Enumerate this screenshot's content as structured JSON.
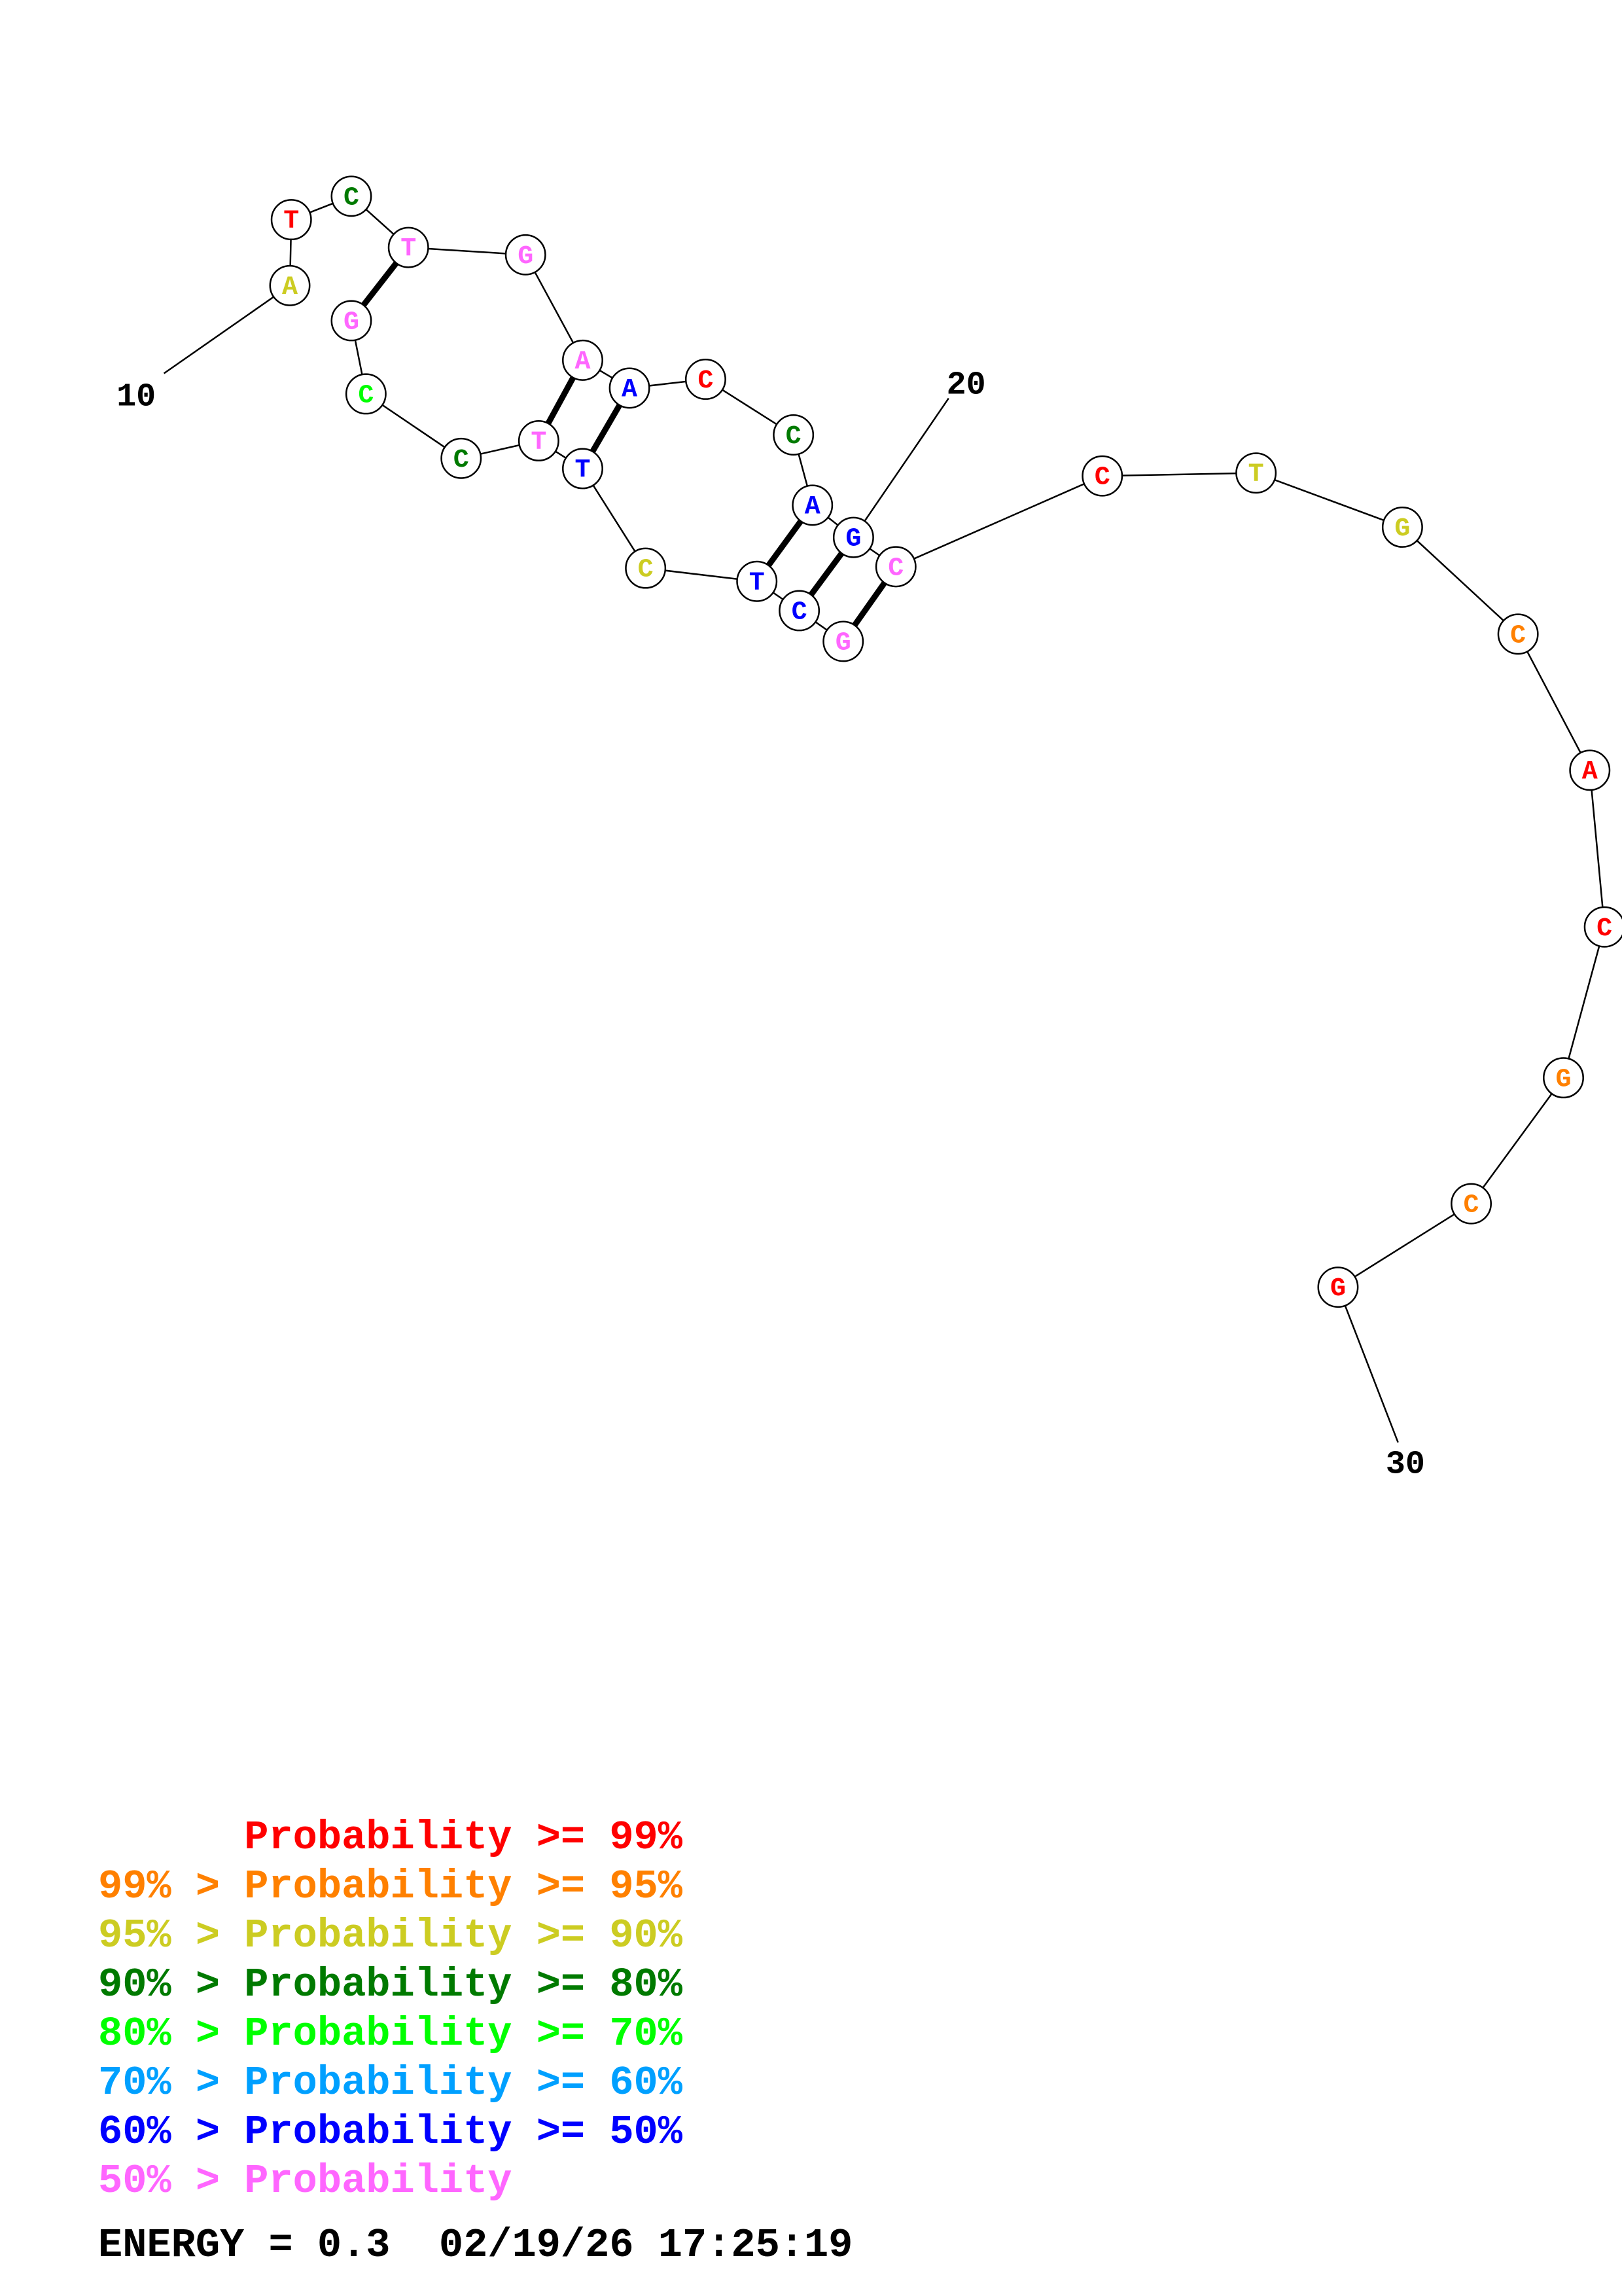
{
  "colors": {
    "p99": "#ff0000",
    "p95": "#ff8000",
    "p90": "#cccc22",
    "p80": "#007a00",
    "p70": "#00ff00",
    "p60": "#00a0ff",
    "p50": "#0000ff",
    "plt50": "#ff66ff"
  },
  "nucleotides": [
    {
      "base": "A",
      "color": "p90"
    },
    {
      "base": "T",
      "color": "p99"
    },
    {
      "base": "C",
      "color": "p80"
    },
    {
      "base": "T",
      "color": "plt50"
    },
    {
      "base": "G",
      "color": "plt50"
    },
    {
      "base": "A",
      "color": "plt50"
    },
    {
      "base": "A",
      "color": "p50"
    },
    {
      "base": "C",
      "color": "p99"
    },
    {
      "base": "C",
      "color": "p80"
    },
    {
      "base": "A",
      "color": "p50"
    },
    {
      "base": "G",
      "color": "p50"
    },
    {
      "base": "C",
      "color": "plt50"
    },
    {
      "base": "G",
      "color": "plt50"
    },
    {
      "base": "C",
      "color": "p50"
    },
    {
      "base": "T",
      "color": "p50"
    },
    {
      "base": "C",
      "color": "p90"
    },
    {
      "base": "T",
      "color": "p50"
    },
    {
      "base": "T",
      "color": "plt50"
    },
    {
      "base": "C",
      "color": "p80"
    },
    {
      "base": "C",
      "color": "p70"
    },
    {
      "base": "G",
      "color": "plt50"
    },
    {
      "base": "C",
      "color": "p99"
    },
    {
      "base": "T",
      "color": "p90"
    },
    {
      "base": "G",
      "color": "p90"
    },
    {
      "base": "C",
      "color": "p95"
    },
    {
      "base": "A",
      "color": "p99"
    },
    {
      "base": "C",
      "color": "p99"
    },
    {
      "base": "G",
      "color": "p95"
    },
    {
      "base": "C",
      "color": "p95"
    },
    {
      "base": "G",
      "color": "p99"
    }
  ],
  "index_labels": [
    "10",
    "20",
    "30"
  ],
  "legend": [
    {
      "prefix": "    ",
      "text": "Probability >= 99%",
      "color": "p99"
    },
    {
      "prefix": "99% > ",
      "text": "Probability >= 95%",
      "color": "p95"
    },
    {
      "prefix": "95% > ",
      "text": "Probability >= 90%",
      "color": "p90"
    },
    {
      "prefix": "90% > ",
      "text": "Probability >= 80%",
      "color": "p80"
    },
    {
      "prefix": "80% > ",
      "text": "Probability >= 70%",
      "color": "p70"
    },
    {
      "prefix": "70% > ",
      "text": "Probability >= 60%",
      "color": "p60"
    },
    {
      "prefix": "60% > ",
      "text": "Probability >= 50%",
      "color": "p50"
    },
    {
      "prefix": "50% > ",
      "text": "Probability",
      "color": "plt50"
    }
  ],
  "energy_label": "ENERGY = 0.3  02/19/26 17:25:19"
}
